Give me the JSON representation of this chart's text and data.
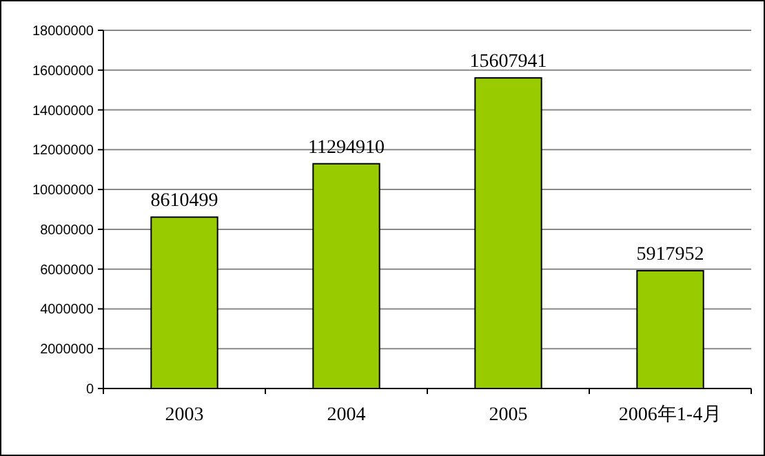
{
  "chart_data": {
    "type": "bar",
    "categories": [
      "2003",
      "2004",
      "2005",
      "2006年1-4月"
    ],
    "values": [
      8610499,
      11294910,
      15607941,
      5917952
    ],
    "color": "#99cc00",
    "ylim": [
      0,
      18000000
    ],
    "yticks": [
      0,
      2000000,
      4000000,
      6000000,
      8000000,
      10000000,
      12000000,
      14000000,
      16000000,
      18000000
    ],
    "grid": "y",
    "data_labels": true
  }
}
